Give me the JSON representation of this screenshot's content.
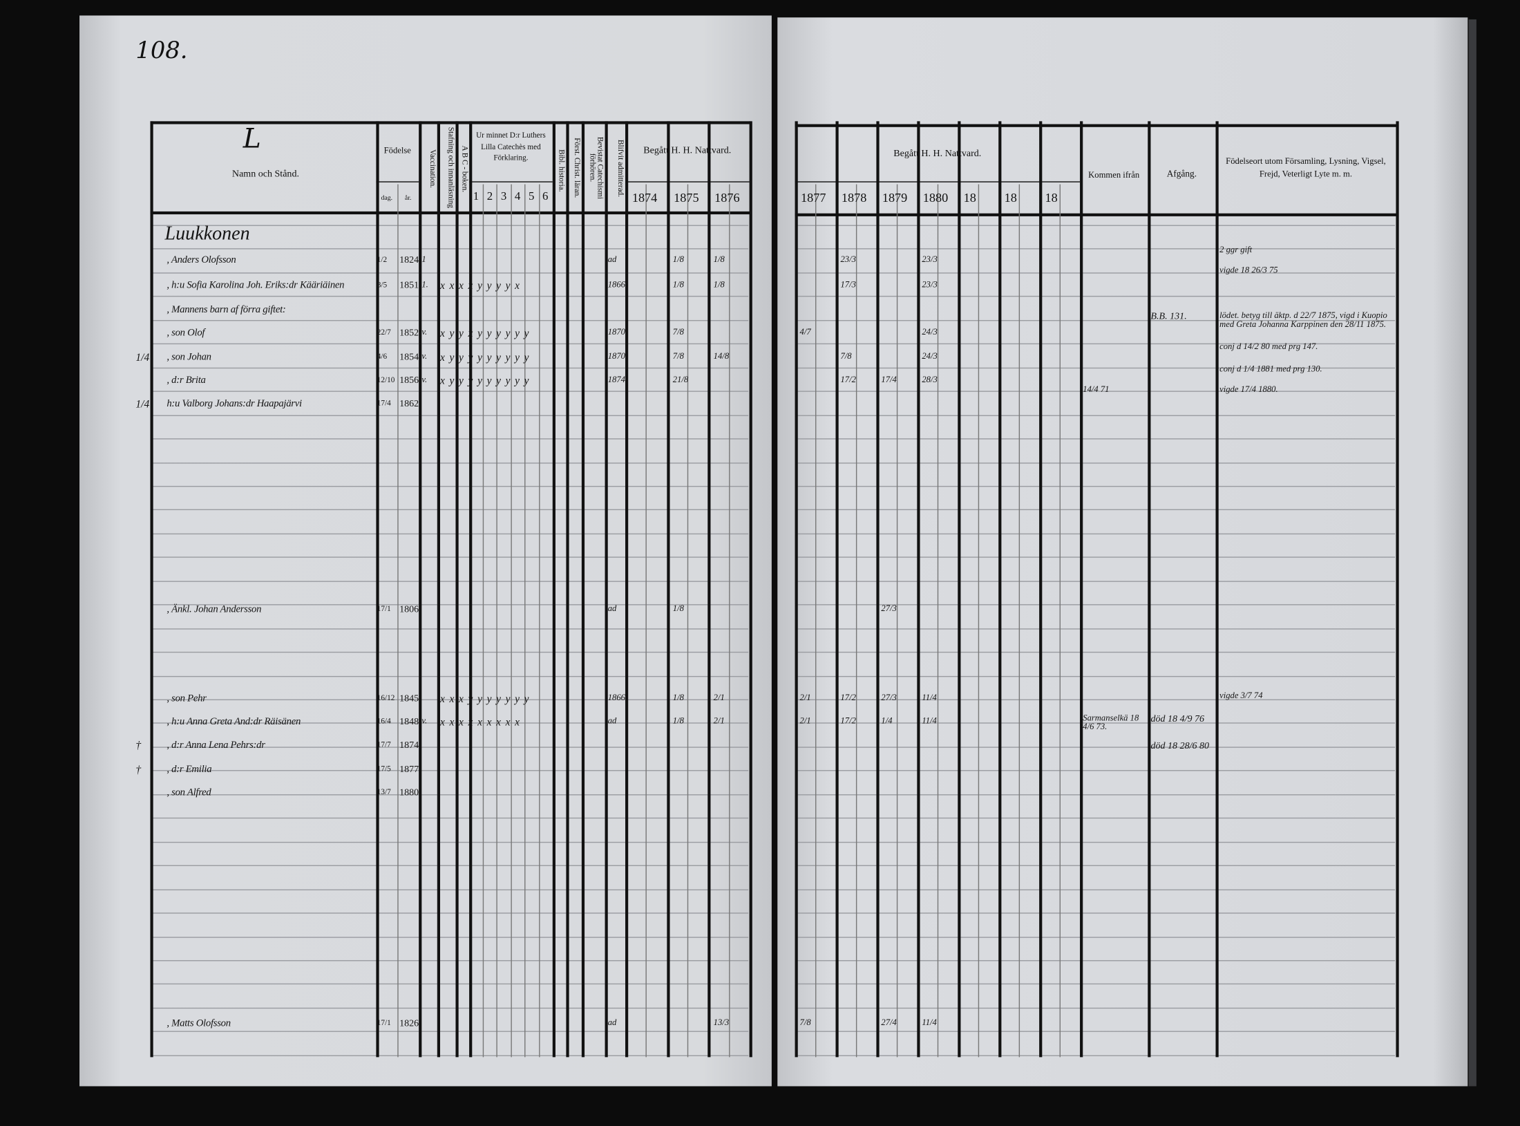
{
  "page_number": "108.",
  "left_header": {
    "letter": "L",
    "name_col": "Namn och Stånd.",
    "birth": "Födelse",
    "birth_day": "dag.",
    "birth_year": "år.",
    "vaccination": "Vaccination.",
    "reading": "Stafning och innanläsning",
    "abc": "A B C - boken.",
    "catechism": "Ur minnet D:r Luthers Lilla Catechès med Förklaring.",
    "catechism_parts": [
      "1",
      "2",
      "3",
      "4",
      "5",
      "6"
    ],
    "bible_history": "Bibl. historia.",
    "christ_teaching": "Först. Christ. läran.",
    "catechism_hearings": "Bevistat Catechismi förhören.",
    "admitted": "Blifvit admitterad.",
    "communion": "Begått H. H. Nattvard.",
    "years": [
      "1874",
      "1875",
      "1876"
    ]
  },
  "right_header": {
    "communion": "Begått H. H. Nattvard.",
    "years": [
      "1877",
      "1878",
      "1879",
      "1880",
      "18",
      "18",
      "18"
    ],
    "came_from": "Kommen ifrån",
    "departure": "Afgång.",
    "notes": "Födelseort utom Församling, Lysning, Vigsel, Frejd, Veterligt Lyte m. m."
  },
  "entries": [
    {
      "mark": "",
      "name": "Luukkonen",
      "day": "",
      "year": "",
      "vacc": "",
      "cat": "",
      "admitted": "",
      "c1874": "",
      "c1875": "",
      "c1876": "",
      "c1877": "",
      "c1878": "",
      "c1879": "",
      "c1880": ""
    },
    {
      "mark": "",
      "name": ", Anders Olofsson",
      "day": "1/2",
      "year": "1824",
      "vacc": "1",
      "cat": "",
      "admitted": "ad",
      "c1874": "",
      "c1875": "1/8",
      "c1876": "1/8",
      "c1877": "",
      "c1878": "23/3",
      "c1879": "",
      "c1880": "23/3"
    },
    {
      "mark": "",
      "name": ", h:u Sofia Karolina Joh. Eriks:dr Kääriäinen",
      "day": "8/5",
      "year": "1851",
      "vacc": "1.",
      "cat": "x x  x x y y y y x",
      "admitted": "1866",
      "c1874": "",
      "c1875": "1/8",
      "c1876": "1/8",
      "c1877": "",
      "c1878": "17/3",
      "c1879": "",
      "c1880": "23/3"
    },
    {
      "mark": "",
      "name": ", Mannens barn af förra giftet:",
      "day": "",
      "year": "",
      "vacc": "",
      "cat": "",
      "admitted": "",
      "c1874": "",
      "c1875": "",
      "c1876": "",
      "c1877": "",
      "c1878": "",
      "c1879": "",
      "c1880": ""
    },
    {
      "mark": "",
      "name": ", son Olof",
      "day": "22/7",
      "year": "1852",
      "vacc": "v.",
      "cat": "x y y x y y y y y   y",
      "admitted": "1870",
      "c1874": "",
      "c1875": "7/8",
      "c1876": "",
      "c1877": "4/7",
      "c1878": "",
      "c1879": "",
      "c1880": "24/3"
    },
    {
      "mark": "1/4",
      "name": ", son Johan",
      "day": "4/6",
      "year": "1854",
      "vacc": "v.",
      "cat": "x y y y y y y y y   y",
      "admitted": "1870",
      "c1874": "",
      "c1875": "7/8",
      "c1876": "14/8",
      "c1877": "",
      "c1878": "7/8",
      "c1879": "",
      "c1880": "24/3"
    },
    {
      "mark": "",
      "name": ", d:r Brita",
      "day": "12/10",
      "year": "1856",
      "vacc": "v.",
      "cat": "x y y y y y y y y   y",
      "admitted": "1874",
      "c1874": "",
      "c1875": "21/8",
      "c1876": "",
      "c1877": "",
      "c1878": "17/2",
      "c1879": "17/4",
      "c1880": "28/3"
    },
    {
      "mark": "1/4",
      "name": "h:u Valborg Johans:dr Haapajärvi",
      "day": "17/4",
      "year": "1862",
      "vacc": "",
      "cat": "",
      "admitted": "",
      "c1874": "",
      "c1875": "",
      "c1876": "",
      "c1877": "",
      "c1878": "",
      "c1879": "",
      "c1880": ""
    },
    {
      "mark": "",
      "name": ", Änkl. Johan Andersson",
      "day": "17/1",
      "year": "1806",
      "vacc": "",
      "cat": "",
      "admitted": "ad",
      "c1874": "",
      "c1875": "1/8",
      "c1876": "",
      "c1877": "",
      "c1878": "",
      "c1879": "27/3",
      "c1880": ""
    },
    {
      "mark": "",
      "name": ", son Pehr",
      "day": "16/12",
      "year": "1845",
      "vacc": "",
      "cat": "x x  x y y y y y y   y",
      "admitted": "1866",
      "c1874": "",
      "c1875": "1/8",
      "c1876": "2/1",
      "c1877": "2/1",
      "c1878": "17/2",
      "c1879": "27/3",
      "c1880": "11/4"
    },
    {
      "mark": "",
      "name": ", h:u Anna Greta And:dr Räisänen",
      "day": "16/4",
      "year": "1848",
      "vacc": "v.",
      "cat": "x x  x x x x x x x",
      "admitted": "ad",
      "c1874": "",
      "c1875": "1/8",
      "c1876": "2/1",
      "c1877": "2/1",
      "c1878": "17/2",
      "c1879": "1/4",
      "c1880": "11/4"
    },
    {
      "mark": "†",
      "name": ", d:r Anna Lena Pehrs:dr",
      "day": "17/7",
      "year": "1874",
      "vacc": "",
      "cat": "",
      "admitted": "",
      "c1874": "",
      "c1875": "",
      "c1876": "",
      "c1877": "",
      "c1878": "",
      "c1879": "",
      "c1880": ""
    },
    {
      "mark": "†",
      "name": ", d:r Emilia",
      "day": "17/5",
      "year": "1877",
      "vacc": "",
      "cat": "",
      "admitted": "",
      "c1874": "",
      "c1875": "",
      "c1876": "",
      "c1877": "",
      "c1878": "",
      "c1879": "",
      "c1880": ""
    },
    {
      "mark": "",
      "name": ", son Alfred",
      "day": "13/7",
      "year": "1880",
      "vacc": "",
      "cat": "",
      "admitted": "",
      "c1874": "",
      "c1875": "",
      "c1876": "",
      "c1877": "",
      "c1878": "",
      "c1879": "",
      "c1880": ""
    },
    {
      "mark": "",
      "name": ", Matts Olofsson",
      "day": "17/1",
      "year": "1826",
      "vacc": "",
      "cat": "",
      "admitted": "ad",
      "c1874": "",
      "c1875": "",
      "c1876": "13/3",
      "c1877": "7/8",
      "c1878": "",
      "c1879": "27/4",
      "c1880": "11/4"
    }
  ],
  "right_notes": [
    {
      "came_from": "",
      "departure": "",
      "note": "2 ggr gift"
    },
    {
      "came_from": "",
      "departure": "",
      "note": "vigde 18 26/3 75"
    },
    {
      "came_from": "",
      "departure": "B.B. 131.",
      "note": "lödet. betyg till äktp. d 22/7 1875, vigd i Kuopio med Greta Johanna Karppinen den 28/11 1875."
    },
    {
      "came_from": "",
      "departure": "",
      "note": "conj d 14/2 80 med prg 147."
    },
    {
      "came_from": "",
      "departure": "",
      "note": "conj d 1/4 1881 med prg 130."
    },
    {
      "came_from": "14/4 71",
      "departure": "",
      "note": "vigde 17/4 1880."
    },
    {
      "came_from": "",
      "departure": "",
      "note": "vigde 3/7 74"
    },
    {
      "came_from": "Sarmanselkä 18 4/6 73.",
      "departure": "död 18 4/9 76",
      "note": ""
    },
    {
      "came_from": "",
      "departure": "död 18 28/6 80",
      "note": ""
    }
  ]
}
